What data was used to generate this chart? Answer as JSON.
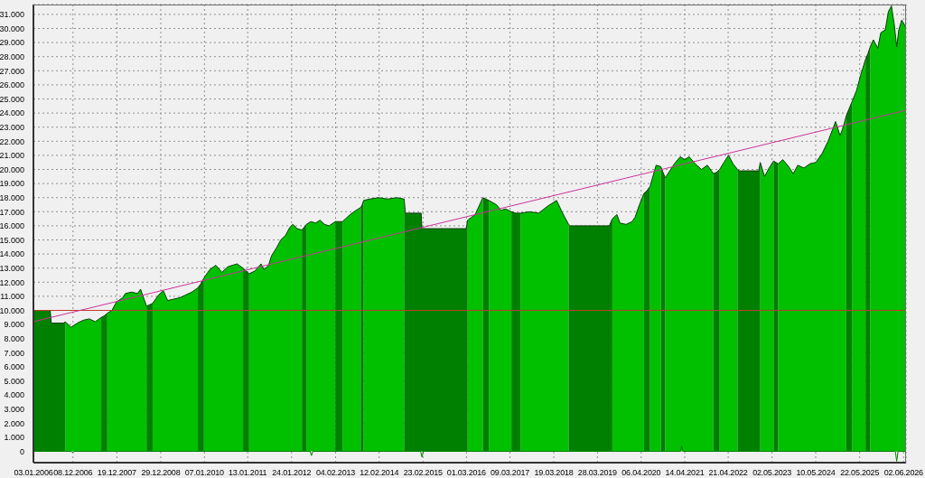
{
  "chart_data": {
    "type": "area",
    "x": [
      "2006-01-03",
      "2006-05-27",
      "2006-06-05",
      "2006-09-22",
      "2006-10-02",
      "2006-11-23",
      "2007-01-14",
      "2007-03-05",
      "2007-04-26",
      "2007-06-17",
      "2007-08-07",
      "2007-08-31",
      "2007-09-28",
      "2007-11-07",
      "2007-12-15",
      "2008-02-06",
      "2008-03-01",
      "2008-04-23",
      "2008-06-13",
      "2008-07-09",
      "2008-08-29",
      "2008-09-25",
      "2008-10-20",
      "2008-12-11",
      "2009-01-20",
      "2009-02-26",
      "2009-04-18",
      "2009-06-10",
      "2009-08-01",
      "2009-09-21",
      "2009-11-12",
      "2009-12-08",
      "2010-01-03",
      "2010-02-22",
      "2010-04-15",
      "2010-06-06",
      "2010-07-27",
      "2010-10-13",
      "2010-12-04",
      "2010-12-30",
      "2011-01-25",
      "2011-03-16",
      "2011-05-07",
      "2011-06-02",
      "2011-07-10",
      "2011-08-06",
      "2011-09-14",
      "2011-10-23",
      "2011-12-01",
      "2012-01-09",
      "2012-02-04",
      "2012-03-12",
      "2012-04-21",
      "2012-05-10",
      "2012-05-29",
      "2012-07-07",
      "2012-08-16",
      "2012-09-23",
      "2012-11-02",
      "2012-12-10",
      "2013-02-01",
      "2013-03-03",
      "2013-04-04",
      "2013-06-08",
      "2013-07-29",
      "2013-09-07",
      "2013-09-20",
      "2013-10-02",
      "2013-11-23",
      "2014-02-09",
      "2014-04-26",
      "2014-07-13",
      "2014-09-14",
      "2014-09-25",
      "2015-02-07",
      "2015-02-13",
      "2016-02-28",
      "2016-03-11",
      "2016-05-15",
      "2016-07-19",
      "2016-08-14",
      "2016-09-09",
      "2016-11-13",
      "2016-12-21",
      "2017-01-30",
      "2017-03-21",
      "2017-04-29",
      "2017-06-07",
      "2017-08-24",
      "2017-11-10",
      "2018-01-26",
      "2018-04-12",
      "2018-06-03",
      "2018-07-24",
      "2018-08-07",
      "2019-07-08",
      "2019-08-03",
      "2019-09-11",
      "2019-10-07",
      "2019-11-28",
      "2020-01-19",
      "2020-02-13",
      "2020-03-22",
      "2020-04-30",
      "2020-05-26",
      "2020-06-21",
      "2020-08-12",
      "2020-09-21",
      "2020-10-10",
      "2020-10-29",
      "2020-12-07",
      "2021-01-15",
      "2021-03-06",
      "2021-04-14",
      "2021-05-22",
      "2021-07-13",
      "2021-09-04",
      "2021-10-25",
      "2021-12-16",
      "2022-01-12",
      "2022-02-07",
      "2022-03-16",
      "2022-04-24",
      "2022-06-02",
      "2022-07-10",
      "2022-07-23",
      "2023-01-08",
      "2023-01-21",
      "2023-02-27",
      "2023-04-07",
      "2023-05-15",
      "2023-06-04",
      "2023-06-24",
      "2023-08-02",
      "2023-09-22",
      "2023-10-30",
      "2023-12-09",
      "2024-01-30",
      "2024-03-21",
      "2024-05-11",
      "2024-07-02",
      "2024-08-24",
      "2024-10-14",
      "2024-10-27",
      "2024-12-05",
      "2025-01-01",
      "2025-01-27",
      "2025-02-20",
      "2025-03-17",
      "2025-04-25",
      "2025-06-03",
      "2025-07-11",
      "2025-07-31",
      "2025-08-20",
      "2025-09-16",
      "2025-10-24",
      "2025-11-19",
      "2025-12-27",
      "2026-01-23",
      "2026-02-18",
      "2026-03-14",
      "2026-04-04",
      "2026-04-22",
      "2026-05-17",
      "2026-06-20"
    ],
    "series": [
      {
        "color": "#00c000",
        "values": [
          null,
          null,
          null,
          null,
          9200,
          8800,
          9100,
          9300,
          9400,
          9200,
          9500,
          null,
          9800,
          10000,
          10600,
          10900,
          11200,
          11300,
          11200,
          11500,
          10300,
          null,
          10500,
          11100,
          11400,
          10700,
          10800,
          10900,
          11100,
          11300,
          11600,
          null,
          12300,
          12900,
          13200,
          12700,
          13100,
          13300,
          13000,
          null,
          12600,
          12800,
          13300,
          12900,
          13200,
          13900,
          14400,
          15000,
          15300,
          15900,
          16100,
          15800,
          15700,
          null,
          16100,
          16300,
          16200,
          16400,
          16100,
          16000,
          16300,
          null,
          16300,
          16800,
          17100,
          17300,
          null,
          17800,
          17900,
          18000,
          17900,
          18000,
          17900,
          null,
          null,
          null,
          null,
          16400,
          16800,
          18000,
          null,
          17800,
          17500,
          17100,
          17200,
          17000,
          null,
          16900,
          17000,
          16900,
          17400,
          17800,
          16900,
          16100,
          null,
          null,
          16500,
          16800,
          16200,
          16100,
          16300,
          16600,
          17500,
          18300,
          null,
          18800,
          20300,
          20200,
          null,
          19400,
          19900,
          20400,
          20900,
          20700,
          20900,
          20400,
          20000,
          20300,
          19700,
          null,
          20000,
          20500,
          21000,
          20400,
          20000,
          null,
          null,
          20500,
          19500,
          20100,
          20600,
          null,
          20400,
          20700,
          20200,
          19700,
          20300,
          20100,
          20400,
          20500,
          21100,
          22000,
          23100,
          23400,
          22400,
          23000,
          23800,
          null,
          24800,
          25600,
          26800,
          27800,
          null,
          28700,
          29200,
          28600,
          29700,
          29900,
          31200,
          31600,
          30300,
          28700,
          29900,
          30600,
          30100
        ]
      },
      {
        "color": "#008000",
        "values": [
          10000,
          10000,
          9100,
          9100,
          9200,
          null,
          null,
          null,
          null,
          null,
          9500,
          9600,
          9800,
          null,
          null,
          null,
          null,
          null,
          null,
          null,
          10300,
          10400,
          10500,
          null,
          null,
          null,
          null,
          null,
          null,
          null,
          11600,
          11900,
          12300,
          null,
          null,
          null,
          null,
          null,
          13000,
          12800,
          12600,
          null,
          null,
          null,
          null,
          null,
          null,
          null,
          null,
          null,
          null,
          null,
          15700,
          15900,
          16100,
          null,
          null,
          null,
          null,
          null,
          16300,
          16300,
          16300,
          null,
          null,
          17300,
          17500,
          17800,
          null,
          null,
          null,
          null,
          17900,
          16900,
          16900,
          15800,
          15800,
          16400,
          null,
          18000,
          17900,
          17800,
          null,
          null,
          null,
          17000,
          16900,
          16900,
          null,
          null,
          null,
          null,
          null,
          16100,
          16000,
          16000,
          16500,
          null,
          null,
          null,
          null,
          null,
          null,
          18300,
          18500,
          18800,
          null,
          20200,
          19800,
          19400,
          null,
          null,
          null,
          null,
          null,
          null,
          null,
          null,
          19700,
          19800,
          20000,
          null,
          null,
          null,
          20000,
          19900,
          19900,
          20500,
          null,
          null,
          20600,
          20500,
          20400,
          null,
          null,
          null,
          null,
          null,
          null,
          null,
          null,
          null,
          null,
          null,
          null,
          null,
          23800,
          24300,
          24800,
          null,
          null,
          27800,
          28200,
          28700,
          null,
          null,
          null,
          null,
          null,
          null,
          null,
          null,
          null,
          null,
          null
        ]
      },
      {
        "type": "line",
        "color": "#008000",
        "x": [
          "2006-01-03",
          "2006-11-24",
          "2006-12-06",
          "2006-12-18",
          "2012-06-30",
          "2012-07-12",
          "2012-07-24",
          "2015-02-02",
          "2015-02-14",
          "2015-02-26",
          "2021-03-07",
          "2021-03-19",
          "2021-03-31",
          "2026-03-23",
          "2026-04-04",
          "2026-04-16",
          "2026-06-20"
        ],
        "values": [
          0,
          0,
          -100,
          0,
          0,
          -300,
          0,
          0,
          -400,
          0,
          0,
          400,
          0,
          0,
          -700,
          0,
          0
        ]
      },
      {
        "type": "line",
        "color": "#cc3399",
        "x": [
          "2006-01-03",
          "2026-06-23"
        ],
        "values": [
          9200,
          24200
        ]
      }
    ],
    "ref_lines": [
      {
        "axis": "y",
        "value": 10000,
        "color": "#c0392b"
      }
    ],
    "xlim": [
      "2006-01-03",
      "2026-06-23"
    ],
    "xticks": [
      {
        "value": "2006-01-03",
        "label": "03.01.2006"
      },
      {
        "value": "2006-12-08",
        "label": "08.12.2006"
      },
      {
        "value": "2007-12-19",
        "label": "19.12.2007"
      },
      {
        "value": "2008-12-29",
        "label": "29.12.2008"
      },
      {
        "value": "2010-01-07",
        "label": "07.01.2010"
      },
      {
        "value": "2011-01-13",
        "label": "13.01.2011"
      },
      {
        "value": "2012-01-24",
        "label": "24.01.2012"
      },
      {
        "value": "2013-02-04",
        "label": "04.02.2013"
      },
      {
        "value": "2014-02-12",
        "label": "12.02.2014"
      },
      {
        "value": "2015-02-23",
        "label": "23.02.2015"
      },
      {
        "value": "2016-03-01",
        "label": "01.03.2016"
      },
      {
        "value": "2017-03-09",
        "label": "09.03.2017"
      },
      {
        "value": "2018-03-19",
        "label": "19.03.2018"
      },
      {
        "value": "2019-03-28",
        "label": "28.03.2019"
      },
      {
        "value": "2020-04-06",
        "label": "06.04.2020"
      },
      {
        "value": "2021-04-14",
        "label": "14.04.2021"
      },
      {
        "value": "2022-04-21",
        "label": "21.04.2022"
      },
      {
        "value": "2023-05-02",
        "label": "02.05.2023"
      },
      {
        "value": "2024-05-10",
        "label": "10.05.2024"
      },
      {
        "value": "2025-05-22",
        "label": "22.05.2025"
      },
      {
        "value": "2026-06-02",
        "label": "02.06.2026"
      }
    ],
    "ylim": [
      -800,
      31700
    ],
    "yticks": [
      0,
      {
        "value": 1000,
        "label": "1.000"
      },
      {
        "value": 2000,
        "label": "2.000"
      },
      {
        "value": 3000,
        "label": "3.000"
      },
      {
        "value": 4000,
        "label": "4.000"
      },
      {
        "value": 5000,
        "label": "5.000"
      },
      {
        "value": 6000,
        "label": "6.000"
      },
      {
        "value": 7000,
        "label": "7.000"
      },
      {
        "value": 8000,
        "label": "8.000"
      },
      {
        "value": 9000,
        "label": "9.000"
      },
      {
        "value": 10000,
        "label": "10.000"
      },
      {
        "value": 11000,
        "label": "11.000"
      },
      {
        "value": 12000,
        "label": "12.000"
      },
      {
        "value": 13000,
        "label": "13.000"
      },
      {
        "value": 14000,
        "label": "14.000"
      },
      {
        "value": 15000,
        "label": "15.000"
      },
      {
        "value": 16000,
        "label": "16.000"
      },
      {
        "value": 17000,
        "label": "17.000"
      },
      {
        "value": 18000,
        "label": "18.000"
      },
      {
        "value": 19000,
        "label": "19.000"
      },
      {
        "value": 20000,
        "label": "20.000"
      },
      {
        "value": 21000,
        "label": "21.000"
      },
      {
        "value": 22000,
        "label": "22.000"
      },
      {
        "value": 23000,
        "label": "23.000"
      },
      {
        "value": 24000,
        "label": "24.000"
      },
      {
        "value": 25000,
        "label": "25.000"
      },
      {
        "value": 26000,
        "label": "26.000"
      },
      {
        "value": 27000,
        "label": "27.000"
      },
      {
        "value": 28000,
        "label": "28.000"
      },
      {
        "value": 29000,
        "label": "29.000"
      },
      {
        "value": 30000,
        "label": "30.000"
      },
      {
        "value": 31000,
        "label": "31.000"
      }
    ],
    "grid": true
  }
}
